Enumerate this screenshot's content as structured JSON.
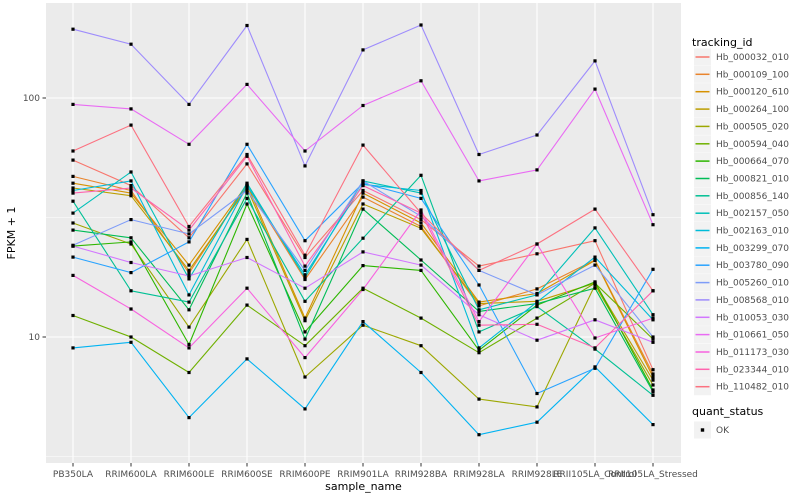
{
  "chart_data": {
    "type": "line",
    "title": "",
    "xlabel": "sample_name",
    "ylabel": "FPKM + 1",
    "y_scale": "log10",
    "y_ticks": [
      10,
      100
    ],
    "y_tick_labels": [
      "10",
      "100"
    ],
    "y_minor_gridlines": [
      3.162,
      31.62
    ],
    "ylim": [
      3.0,
      250
    ],
    "grid": true,
    "panel_bg": "#EBEBEB",
    "grid_color": "#FFFFFF",
    "tick_label_color": "#4D4D4D",
    "axis_title_color": "#000000",
    "marker": "square",
    "marker_color": "#000000",
    "categories": [
      "PB350LA",
      "RRIM600LA",
      "RRIM600LE",
      "RRIM600SE",
      "RRIM600PE",
      "RRIM901LA",
      "RRIM928BA",
      "RRIM928LA",
      "RRIM928LE",
      "RRII105LA_Control",
      "RRII105LA_Stressed"
    ],
    "series": [
      {
        "name": "Hb_000032_010",
        "color": "#F8766D",
        "values": [
          55,
          43,
          26,
          53,
          21.5,
          41,
          31,
          19.8,
          22.3,
          25.3,
          7.3
        ]
      },
      {
        "name": "Hb_000109_100",
        "color": "#E9842C",
        "values": [
          47,
          41,
          18.5,
          43,
          17.4,
          38.5,
          29,
          13.5,
          15.9,
          21,
          7
        ]
      },
      {
        "name": "Hb_000120_610",
        "color": "#D69100",
        "values": [
          44,
          40,
          20,
          43.5,
          12,
          40,
          30,
          14,
          15.2,
          20.9,
          6.8
        ]
      },
      {
        "name": "Hb_000264_100",
        "color": "#BC9D00",
        "values": [
          42,
          39,
          19,
          42,
          11.7,
          36,
          28.5,
          13.8,
          14.1,
          16.8,
          6.6
        ]
      },
      {
        "name": "Hb_000505_020",
        "color": "#9CA700",
        "values": [
          30,
          24.5,
          11,
          25.6,
          6.8,
          11.2,
          9.2,
          5.5,
          5.1,
          16.5,
          6.3
        ]
      },
      {
        "name": "Hb_000594_040",
        "color": "#6FB000",
        "values": [
          12.3,
          10,
          7.1,
          13.6,
          9.2,
          16,
          12,
          8.6,
          12,
          16.8,
          9.8
        ]
      },
      {
        "name": "Hb_000664_070",
        "color": "#2DB600",
        "values": [
          24,
          25,
          9.3,
          36,
          10.5,
          19.9,
          19,
          8.8,
          13.6,
          17,
          6
        ]
      },
      {
        "name": "Hb_000821_010",
        "color": "#00BC56",
        "values": [
          28,
          26,
          13,
          40,
          9.8,
          34.3,
          21,
          12.8,
          13.8,
          16,
          5.9
        ]
      },
      {
        "name": "Hb_000856_140",
        "color": "#00C094",
        "values": [
          37,
          15.6,
          14,
          38,
          14.1,
          25.9,
          47.5,
          10.5,
          13.4,
          8.9,
          5.7
        ]
      },
      {
        "name": "Hb_002157_050",
        "color": "#00C0B8",
        "values": [
          33,
          49,
          17.5,
          44,
          17.7,
          45,
          40,
          13,
          15,
          28.6,
          12.4
        ]
      },
      {
        "name": "Hb_002163_010",
        "color": "#00BCD8",
        "values": [
          41,
          45,
          15,
          43,
          18.2,
          43.5,
          41,
          9,
          14,
          21.6,
          11.8
        ]
      },
      {
        "name": "Hb_003299_070",
        "color": "#00B3F2",
        "values": [
          9,
          9.5,
          4.6,
          8.1,
          5,
          11.6,
          7.1,
          3.9,
          4.4,
          7.5,
          4.3
        ]
      },
      {
        "name": "Hb_003780_090",
        "color": "#29A3FF",
        "values": [
          21.6,
          18.6,
          25,
          64,
          25.3,
          44,
          38,
          16.5,
          5.8,
          7.4,
          19.2
        ]
      },
      {
        "name": "Hb_005260_010",
        "color": "#7E9CF8",
        "values": [
          24.2,
          31,
          27,
          41,
          19,
          45,
          32,
          19,
          15,
          20,
          10
        ]
      },
      {
        "name": "Hb_008568_010",
        "color": "#9E8CFC",
        "values": [
          194,
          168,
          94,
          201,
          52,
          159,
          202,
          58,
          70,
          143,
          32.5
        ]
      },
      {
        "name": "Hb_010053_030",
        "color": "#D277FF",
        "values": [
          24,
          20.5,
          18,
          21.5,
          16,
          22.7,
          20,
          12.4,
          9.7,
          11.8,
          9.5
        ]
      },
      {
        "name": "Hb_010661_050",
        "color": "#E96BF3",
        "values": [
          94,
          90,
          64,
          114,
          60,
          93,
          118,
          45,
          50,
          109,
          29.5
        ]
      },
      {
        "name": "Hb_011173_030",
        "color": "#F863DF",
        "values": [
          18.1,
          13.1,
          9,
          16,
          8.2,
          15.8,
          34,
          11.6,
          24.5,
          9.9,
          12
        ]
      },
      {
        "name": "Hb_023344_010",
        "color": "#FF65AE",
        "values": [
          40,
          42,
          28,
          57,
          19.8,
          43,
          33,
          11.2,
          11.3,
          9,
          15.6
        ]
      },
      {
        "name": "Hb_110482_010",
        "color": "#FC7180",
        "values": [
          60,
          77,
          29,
          58,
          22,
          63.5,
          33,
          19,
          24.5,
          34.3,
          15.6
        ]
      }
    ],
    "legend": {
      "position": "right",
      "color_title": "tracking_id",
      "shape_title": "quant_status",
      "shape_items": [
        {
          "label": "OK",
          "marker": "black-square"
        }
      ]
    }
  }
}
